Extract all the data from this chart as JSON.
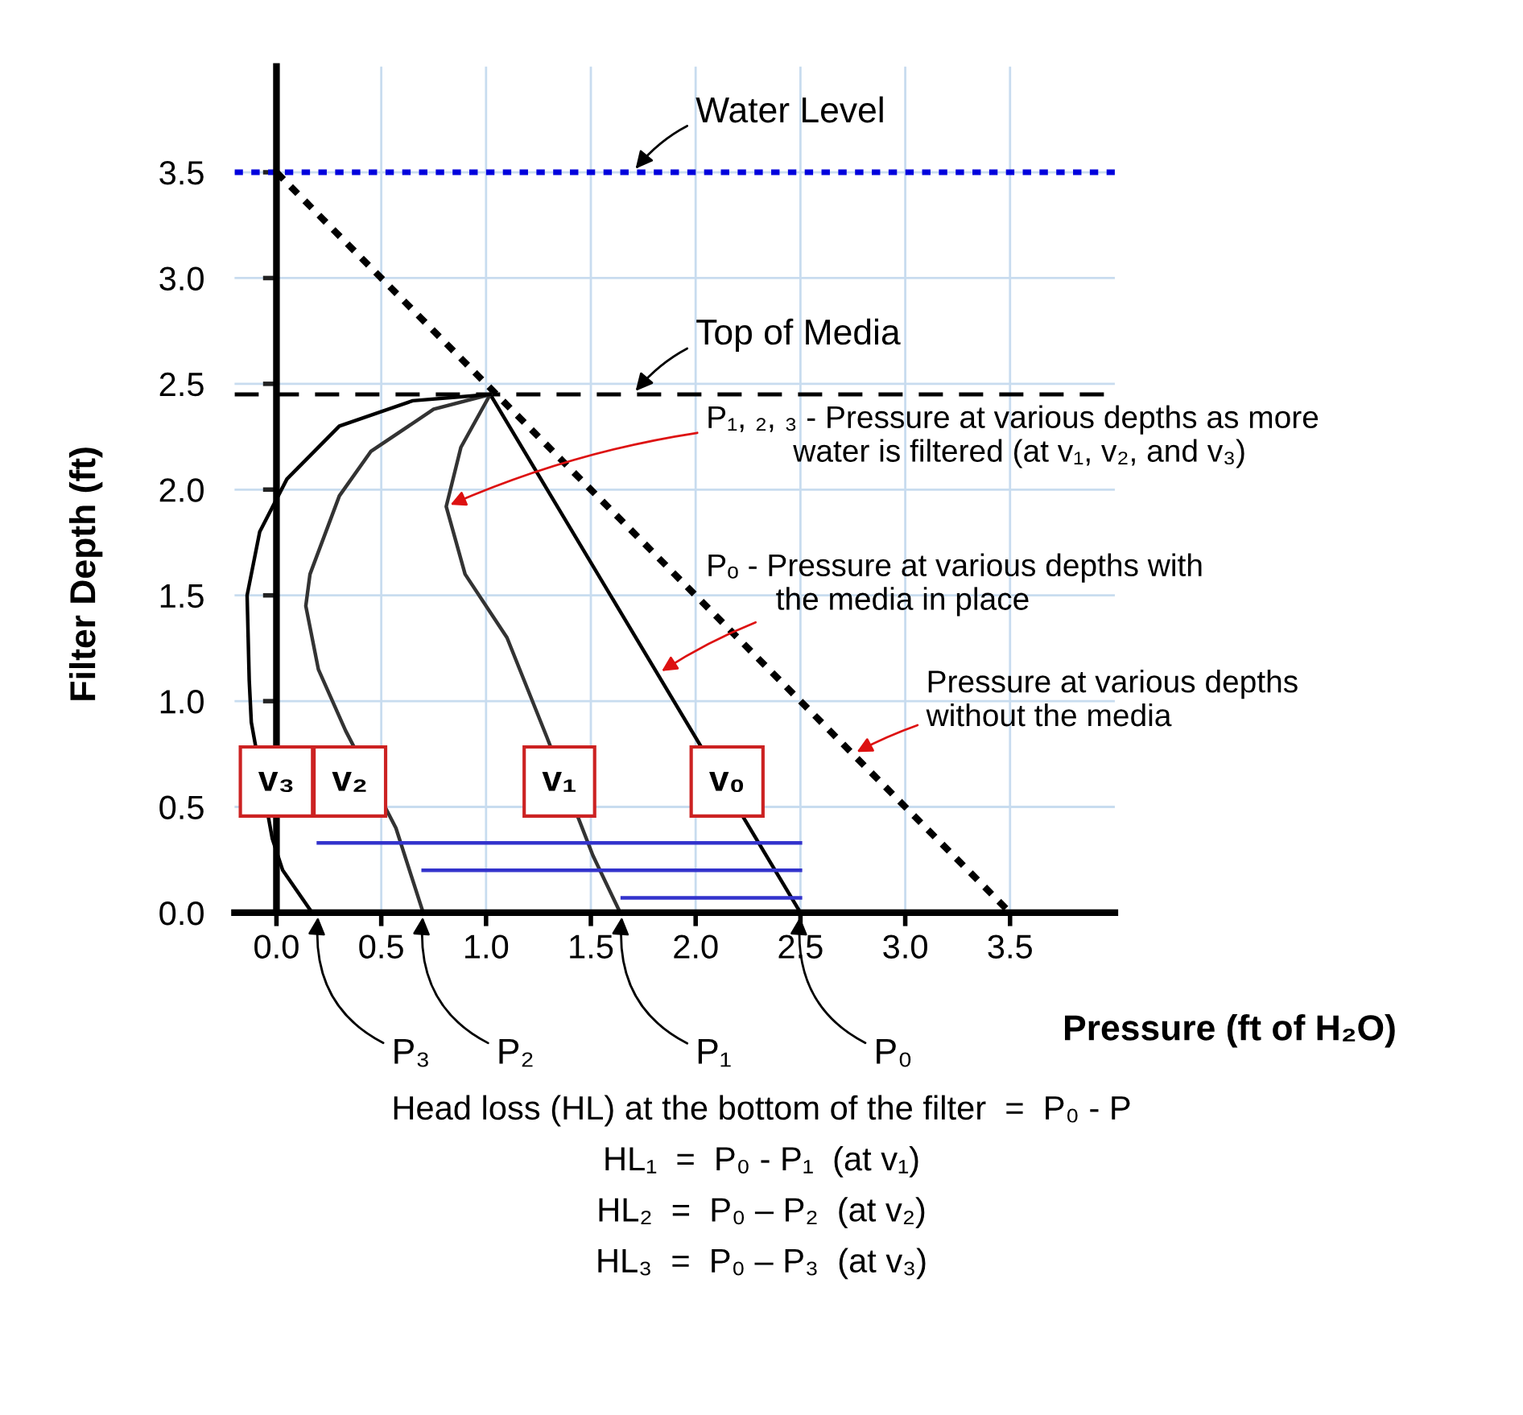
{
  "chart_data": {
    "type": "line",
    "xlabel": "Pressure (ft of H₂O)",
    "ylabel": "Filter Depth (ft)",
    "xlim": [
      -0.2,
      4.0
    ],
    "ylim": [
      0,
      4.0
    ],
    "xticks": [
      {
        "value": 0,
        "label": "0.0"
      },
      0.5,
      {
        "value": 1,
        "label": "1.0"
      },
      1.5,
      {
        "value": 2,
        "label": "2.0"
      },
      2.5,
      {
        "value": 3,
        "label": "3.0"
      },
      3.5
    ],
    "yticks": [
      {
        "value": 0,
        "label": "0.0"
      },
      0.5,
      {
        "value": 1,
        "label": "1.0"
      },
      1.5,
      {
        "value": 2,
        "label": "2.0"
      },
      2.5,
      {
        "value": 3,
        "label": "3.0"
      },
      3.5
    ],
    "grid": true,
    "marker": "none",
    "series": [
      {
        "color": "#000000",
        "line_style": "dotted",
        "x": [
          0,
          3.5
        ],
        "values": [
          3.5,
          0
        ]
      },
      {
        "color": "#000000",
        "line_style": "solid",
        "x": [
          1.02,
          2.5
        ],
        "values": [
          2.45,
          0
        ]
      },
      {
        "color": "#333333",
        "line_style": "solid",
        "x": [
          1.02,
          0.88,
          0.81,
          0.9,
          1.1,
          1.29,
          1.51,
          1.64
        ],
        "values": [
          2.45,
          2.2,
          1.92,
          1.6,
          1.3,
          0.83,
          0.27,
          0
        ]
      },
      {
        "color": "#333333",
        "line_style": "solid",
        "x": [
          1.02,
          0.75,
          0.45,
          0.3,
          0.16,
          0.14,
          0.2,
          0.33,
          0.57,
          0.7
        ],
        "values": [
          2.45,
          2.38,
          2.18,
          1.97,
          1.6,
          1.45,
          1.15,
          0.86,
          0.4,
          0
        ]
      },
      {
        "color": "#000000",
        "line_style": "solid",
        "x": [
          1.02,
          0.65,
          0.3,
          0.05,
          -0.08,
          -0.14,
          -0.13,
          -0.12,
          -0.02,
          0.03,
          0.17
        ],
        "values": [
          2.45,
          2.42,
          2.3,
          2.05,
          1.8,
          1.5,
          1.1,
          0.9,
          0.35,
          0.2,
          0
        ]
      },
      {
        "color": "#3333cc",
        "line_style": "solid",
        "x": [
          0.2,
          2.5
        ],
        "values": [
          0.33,
          0.33
        ]
      },
      {
        "color": "#3333cc",
        "line_style": "solid",
        "x": [
          0.7,
          2.5
        ],
        "values": [
          0.2,
          0.2
        ]
      },
      {
        "color": "#3333cc",
        "line_style": "solid",
        "x": [
          1.65,
          2.5
        ],
        "values": [
          0.07,
          0.07
        ]
      }
    ],
    "ref_lines": [
      {
        "axis": "y",
        "value": 3.5,
        "label": "Water Level",
        "color": "#0000dd",
        "line_style": "dotted"
      },
      {
        "axis": "y",
        "value": 2.45,
        "label": "Top of Media",
        "color": "#000000",
        "line_style": "dashed"
      }
    ],
    "annotations": [
      "v₃",
      "v₂",
      "v₁",
      "v₀",
      {
        "text": "P₃",
        "x": 0.2,
        "y": 0
      },
      {
        "text": "P₂",
        "x": 0.7,
        "y": 0
      },
      {
        "text": "P₁",
        "x": 1.65,
        "y": 0
      },
      {
        "text": "P₀",
        "x": 2.5,
        "y": 0
      },
      {
        "text": "P₁, ₂, ₃ - Pressure at various depths as more\n          water is filtered (at v₁, v₂, and v₃)",
        "x": 0.81,
        "y": 1.92
      },
      {
        "text": "Pₒ - Pressure at various depths with\n        the media in place",
        "x": 1.82,
        "y": 1.13
      },
      {
        "text": "Pressure at various depths\nwithout the media",
        "x": 2.75,
        "y": 0.75
      },
      "Head loss (HL) at the bottom of the filter  =  P₀ - P",
      "HL₁  =  P₀ - P₁  (at v₁)",
      "HL₂  =  P₀ – P₂  (at v₂)",
      "HL₃  =  P₀ – P₃  (at v₃)"
    ]
  }
}
